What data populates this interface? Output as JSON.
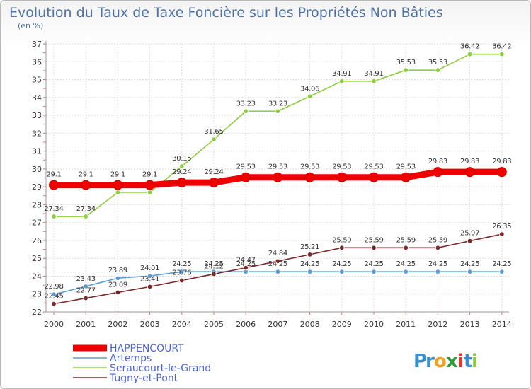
{
  "title": "Evolution du Taux de Taxe Foncière sur les Propriétés Non Bâties",
  "unit_label": "(en %)",
  "logo": {
    "text": "Proxiti",
    "letters": [
      {
        "ch": "P",
        "color": "#3a8fd0"
      },
      {
        "ch": "r",
        "color": "#3a8fd0"
      },
      {
        "ch": "o",
        "color": "#f2a01e"
      },
      {
        "ch": "x",
        "color": "#2f9a3b"
      },
      {
        "ch": "i",
        "color": "#e2362b"
      },
      {
        "ch": "t",
        "color": "#3a8fd0"
      },
      {
        "ch": "i",
        "color": "#8cc63f"
      }
    ]
  },
  "chart_data": {
    "type": "line",
    "title": "Evolution du Taux de Taxe Foncière sur les Propriétés Non Bâties",
    "ylabel": "(en %)",
    "x": [
      "2000",
      "2001",
      "2002",
      "2003",
      "2004",
      "2005",
      "2006",
      "2007",
      "2008",
      "2009",
      "2010",
      "2011",
      "2012",
      "2013",
      "2014"
    ],
    "ylim": [
      22,
      37
    ],
    "yticks": [
      22,
      23,
      24,
      25,
      26,
      27,
      28,
      29,
      30,
      31,
      32,
      33,
      34,
      35,
      36,
      37
    ],
    "grid": true,
    "legend_position": "bottom-left",
    "series": [
      {
        "name": "HAPPENCOURT",
        "color": "#ee0000",
        "emphasis": true,
        "values": [
          29.1,
          29.1,
          29.1,
          29.1,
          29.24,
          29.24,
          29.53,
          29.53,
          29.53,
          29.53,
          29.53,
          29.53,
          29.83,
          29.83,
          29.83
        ],
        "labels": [
          "29.1",
          "29.1",
          "29.1",
          "29.1",
          "29.24",
          "29.24",
          "29.53",
          "29.53",
          "29.53",
          "29.53",
          "29.53",
          "29.53",
          "29.83",
          "29.83",
          "29.83"
        ]
      },
      {
        "name": "Artemps",
        "color": "#5b9bd5",
        "values": [
          22.98,
          23.43,
          23.89,
          24.01,
          24.25,
          24.25,
          24.25,
          24.25,
          24.25,
          24.25,
          24.25,
          24.25,
          24.25,
          24.25,
          24.25
        ],
        "labels": [
          "22.98",
          "23.43",
          "23.89",
          "24.01",
          "24.25",
          "24.25",
          "24.25",
          "24.25",
          "24.25",
          "24.25",
          "24.25",
          "24.25",
          "24.25",
          "24.25",
          "24.25"
        ]
      },
      {
        "name": "Seraucourt-le-Grand",
        "color": "#8ccf3e",
        "values": [
          27.34,
          27.34,
          28.69,
          28.69,
          30.15,
          31.65,
          33.23,
          33.23,
          34.06,
          34.91,
          34.91,
          35.53,
          35.53,
          36.42,
          36.42
        ],
        "labels": [
          "27.34",
          "27.34",
          "28.69",
          "28.69",
          "30.15",
          "31.65",
          "33.23",
          "33.23",
          "34.06",
          "34.91",
          "34.91",
          "35.53",
          "35.53",
          "36.42",
          "36.42"
        ]
      },
      {
        "name": "Tugny-et-Pont",
        "color": "#7a2a2a",
        "values": [
          22.45,
          22.77,
          23.09,
          23.41,
          23.76,
          24.12,
          24.47,
          24.84,
          25.21,
          25.59,
          25.59,
          25.59,
          25.59,
          25.97,
          26.35
        ],
        "labels": [
          "22.45",
          "22.77",
          "23.09",
          "23.41",
          "23.76",
          "24.12",
          "24.47",
          "24.84",
          "25.21",
          "25.59",
          "25.59",
          "25.59",
          "25.59",
          "25.97",
          "26.35"
        ]
      }
    ]
  }
}
